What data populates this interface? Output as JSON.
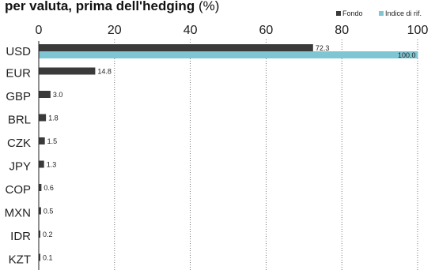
{
  "chart_data": {
    "type": "bar",
    "orientation": "horizontal",
    "title": "per valuta, prima dell'hedging",
    "title_unit": "(%)",
    "xlim": [
      0,
      100
    ],
    "xticks": [
      "0",
      "20",
      "40",
      "60",
      "80",
      "100"
    ],
    "grid": "vertical dotted",
    "legend_position": "top-right",
    "categories": [
      "USD",
      "EUR",
      "GBP",
      "BRL",
      "CZK",
      "JPY",
      "COP",
      "MXN",
      "IDR",
      "KZT"
    ],
    "series": [
      {
        "name": "Fondo",
        "color": "#3a3a3a",
        "values": [
          72.3,
          14.8,
          3.0,
          1.8,
          1.5,
          1.3,
          0.6,
          0.5,
          0.2,
          0.1
        ],
        "labels": [
          "72.3",
          "14.8",
          "3.0",
          "1.8",
          "1.5",
          "1.3",
          "0.6",
          "0.5",
          "0.2",
          "0.1"
        ]
      },
      {
        "name": "Indice di rif.",
        "color": "#7ec6d3",
        "values": [
          100.0,
          null,
          null,
          null,
          null,
          null,
          null,
          null,
          null,
          null
        ],
        "labels": [
          "100.0",
          "",
          "",
          "",
          "",
          "",
          "",
          "",
          "",
          ""
        ]
      }
    ]
  }
}
